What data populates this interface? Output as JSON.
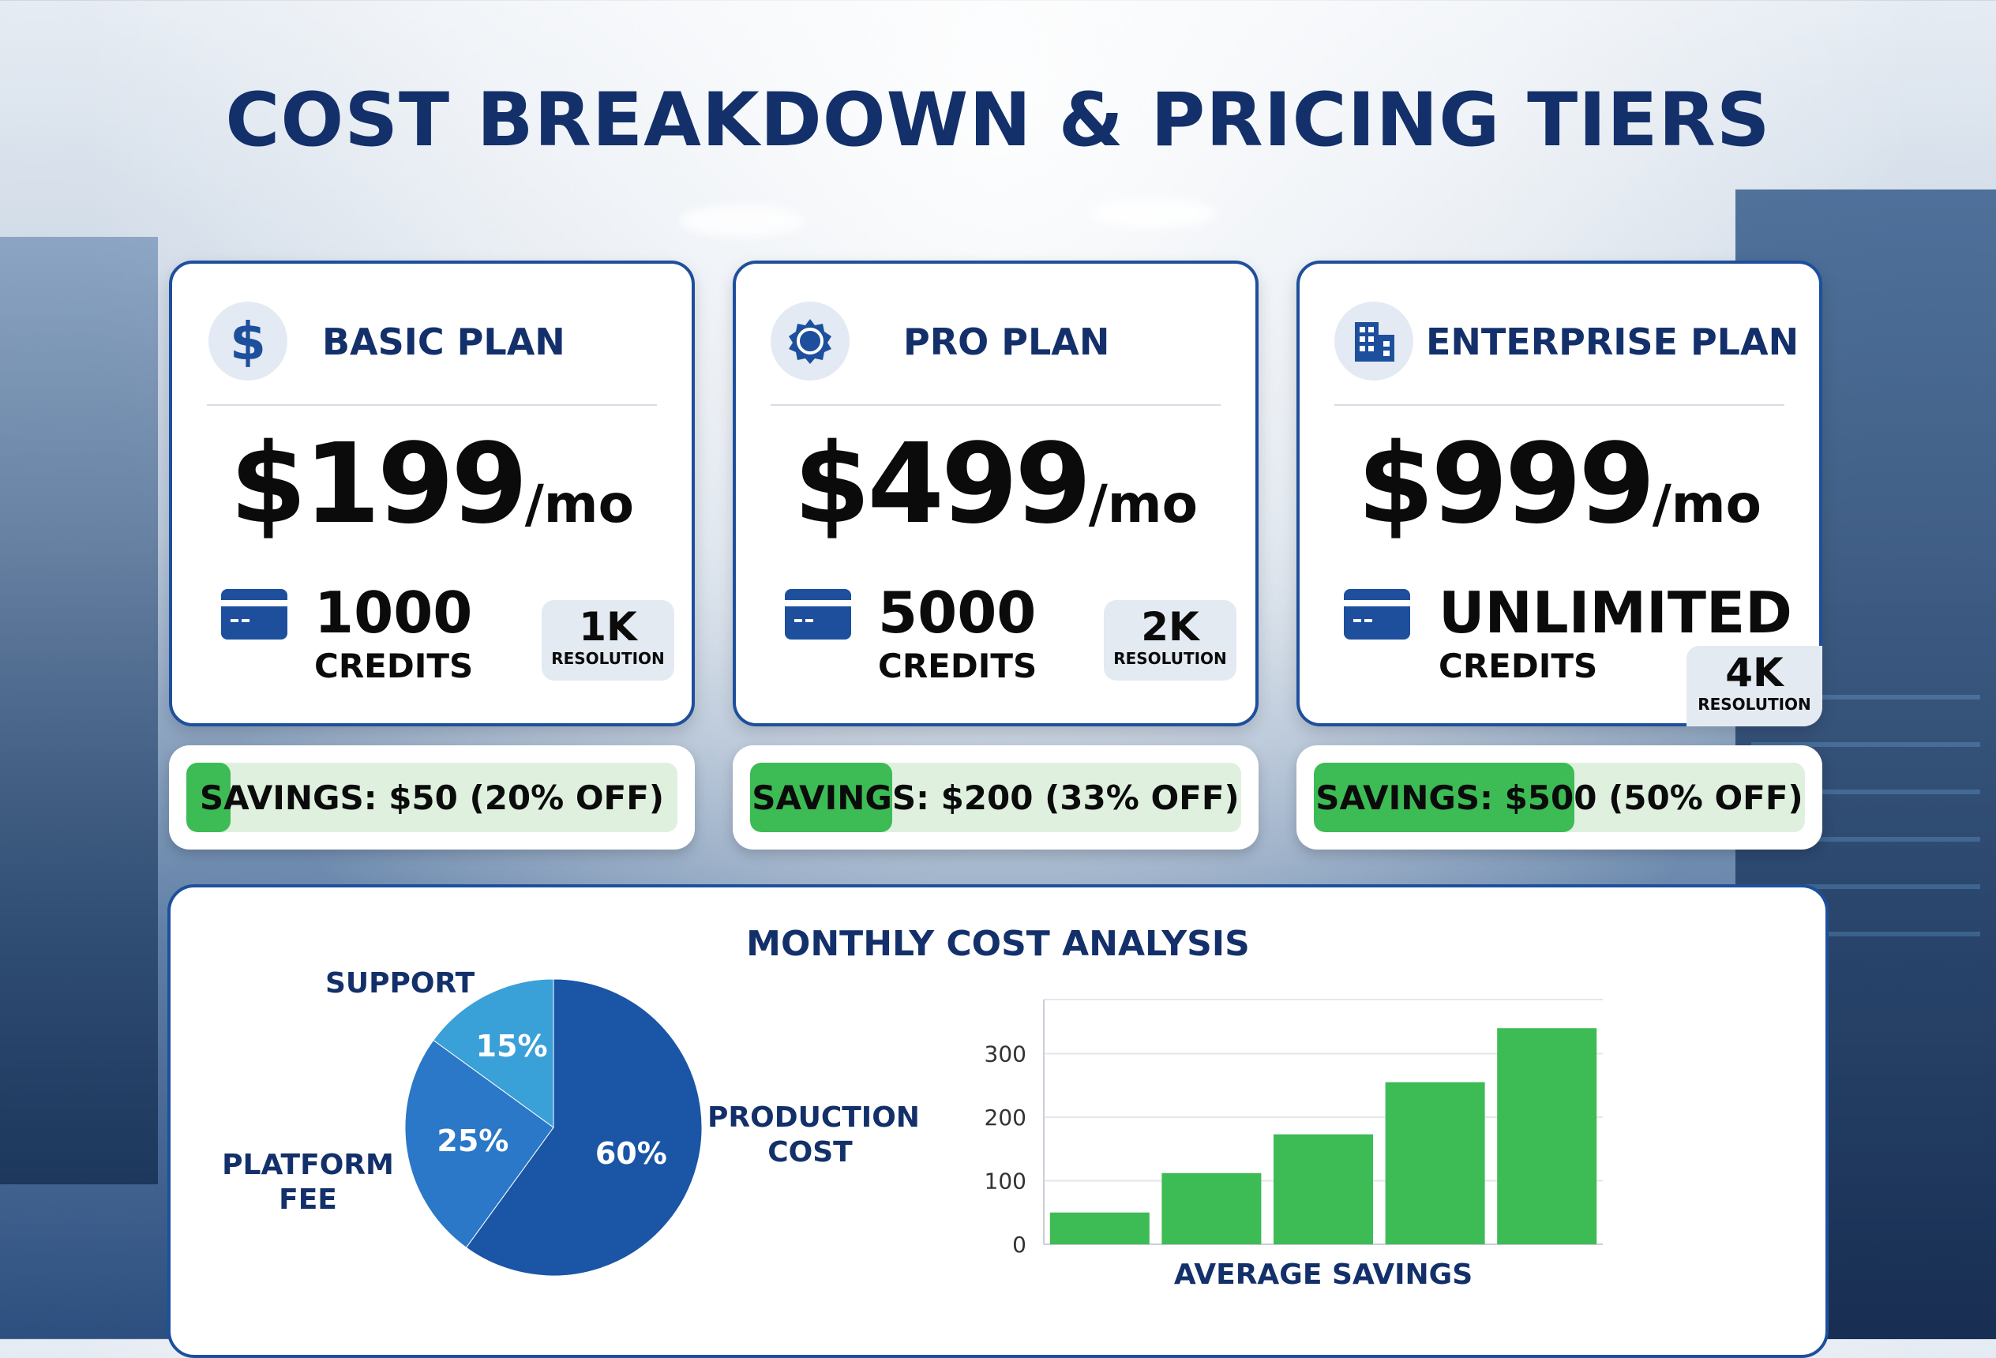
{
  "title": "COST BREAKDOWN & PRICING TIERS",
  "plans": [
    {
      "name": "BASIC PLAN",
      "icon": "dollar-icon",
      "price": "$199",
      "per": "/mo",
      "credits": "1000",
      "credits_label": "CREDITS",
      "resolution": "1K",
      "resolution_label": "RESOLUTION",
      "savings": "SAVINGS: $50 (20% OFF)",
      "savings_fill": 0.09
    },
    {
      "name": "PRO PLAN",
      "icon": "badge-icon",
      "price": "$499",
      "per": "/mo",
      "credits": "5000",
      "credits_label": "CREDITS",
      "resolution": "2K",
      "resolution_label": "RESOLUTION",
      "savings": "SAVINGS: $200 (33% OFF)",
      "savings_fill": 0.29
    },
    {
      "name": "ENTERPRISE PLAN",
      "icon": "building-icon",
      "price": "$999",
      "per": "/mo",
      "credits": "UNLIMITED",
      "credits_label": "CREDITS",
      "resolution": "4K",
      "resolution_label": "RESOLUTION",
      "savings": "SAVINGS: $500 (50% OFF)",
      "savings_fill": 0.53
    }
  ],
  "colors": {
    "navy": "#13306a",
    "border": "#1d4f9c",
    "green": "#3dbb55",
    "green_light": "#dff0df"
  },
  "analysis": {
    "title": "MONTHLY COST ANALYSIS"
  },
  "chart_data": [
    {
      "type": "pie",
      "slices": [
        {
          "label": "PRODUCTION COST",
          "value": 60,
          "display": "60%",
          "color": "#1a55a6"
        },
        {
          "label": "PLATFORM FEE",
          "value": 25,
          "display": "25%",
          "color": "#2a78c7"
        },
        {
          "label": "SUPPORT",
          "value": 15,
          "display": "15%",
          "color": "#3aa0d8"
        }
      ]
    },
    {
      "type": "bar",
      "categories": [
        "",
        "",
        "",
        "",
        ""
      ],
      "values": [
        50,
        112,
        173,
        255,
        340
      ],
      "xlabel": "AVERAGE SAVINGS",
      "ylabel": "",
      "yticks": [
        0,
        100,
        200,
        300
      ],
      "ylim": [
        0,
        385
      ],
      "grid": true,
      "color": "#3dbb55"
    }
  ]
}
